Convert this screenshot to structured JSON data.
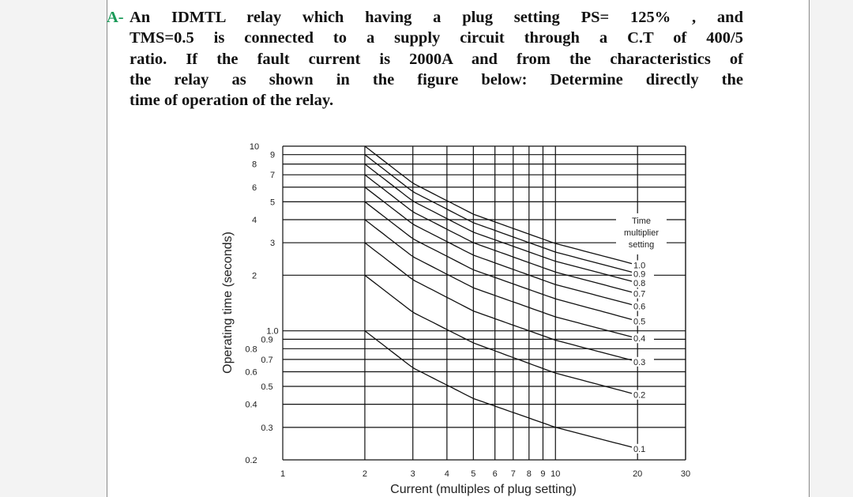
{
  "problem": {
    "label": "A-",
    "lines": [
      "An IDMTL relay which having a plug setting PS= 125% , and",
      "TMS=0.5 is connected to a supply circuit through a C.T of 400/5",
      "ratio. If the fault current is 2000A and from the characteristics of",
      "the relay as shown in the figure below: Determine directly the",
      "time of operation of the relay."
    ]
  },
  "chart_data": {
    "type": "line",
    "xlabel": "Current (multiples of plug setting)",
    "ylabel": "Operating time (seconds)",
    "x_scale": "log",
    "y_scale": "log",
    "xlim": [
      1,
      30
    ],
    "ylim": [
      0.2,
      10
    ],
    "x_tick_labels": [
      "1",
      "2",
      "3",
      "4",
      "5",
      "6",
      "7",
      "8",
      "9",
      "10",
      "20",
      "30"
    ],
    "y_tick_labels": [
      "10",
      "9",
      "8",
      "7",
      "6",
      "5",
      "4",
      "3",
      "2",
      "1.0",
      "0.9",
      "0.8",
      "0.7",
      "0.6",
      "0.5",
      "0.4",
      "0.3",
      "0.2"
    ],
    "grid": true,
    "legend_title": "Time multiplier setting",
    "series": [
      {
        "name": "1.0",
        "x": [
          2,
          3,
          5,
          10,
          20
        ],
        "y": [
          10.0,
          6.3,
          4.28,
          2.97,
          2.27
        ]
      },
      {
        "name": "0.9",
        "x": [
          2,
          3,
          5,
          10,
          20
        ],
        "y": [
          9.0,
          5.67,
          3.85,
          2.67,
          2.04
        ]
      },
      {
        "name": "0.8",
        "x": [
          2,
          3,
          5,
          10,
          20
        ],
        "y": [
          8.0,
          5.04,
          3.42,
          2.38,
          1.82
        ]
      },
      {
        "name": "0.7",
        "x": [
          2,
          3,
          5,
          10,
          20
        ],
        "y": [
          7.0,
          4.41,
          3.0,
          2.08,
          1.59
        ]
      },
      {
        "name": "0.6",
        "x": [
          2,
          3,
          5,
          10,
          20
        ],
        "y": [
          6.0,
          3.78,
          2.57,
          1.78,
          1.36
        ]
      },
      {
        "name": "0.5",
        "x": [
          2,
          3,
          5,
          10,
          20
        ],
        "y": [
          5.0,
          3.15,
          2.14,
          1.49,
          1.13
        ]
      },
      {
        "name": "0.4",
        "x": [
          2,
          3,
          5,
          10,
          20
        ],
        "y": [
          4.0,
          2.52,
          1.71,
          1.19,
          0.91
        ]
      },
      {
        "name": "0.3",
        "x": [
          2,
          3,
          5,
          10,
          20
        ],
        "y": [
          3.0,
          1.89,
          1.28,
          0.89,
          0.68
        ]
      },
      {
        "name": "0.2",
        "x": [
          2,
          3,
          5,
          10,
          20
        ],
        "y": [
          2.0,
          1.26,
          0.86,
          0.59,
          0.45
        ]
      },
      {
        "name": "0.1",
        "x": [
          2,
          3,
          5,
          10,
          20
        ],
        "y": [
          1.0,
          0.63,
          0.43,
          0.3,
          0.23
        ]
      }
    ]
  }
}
